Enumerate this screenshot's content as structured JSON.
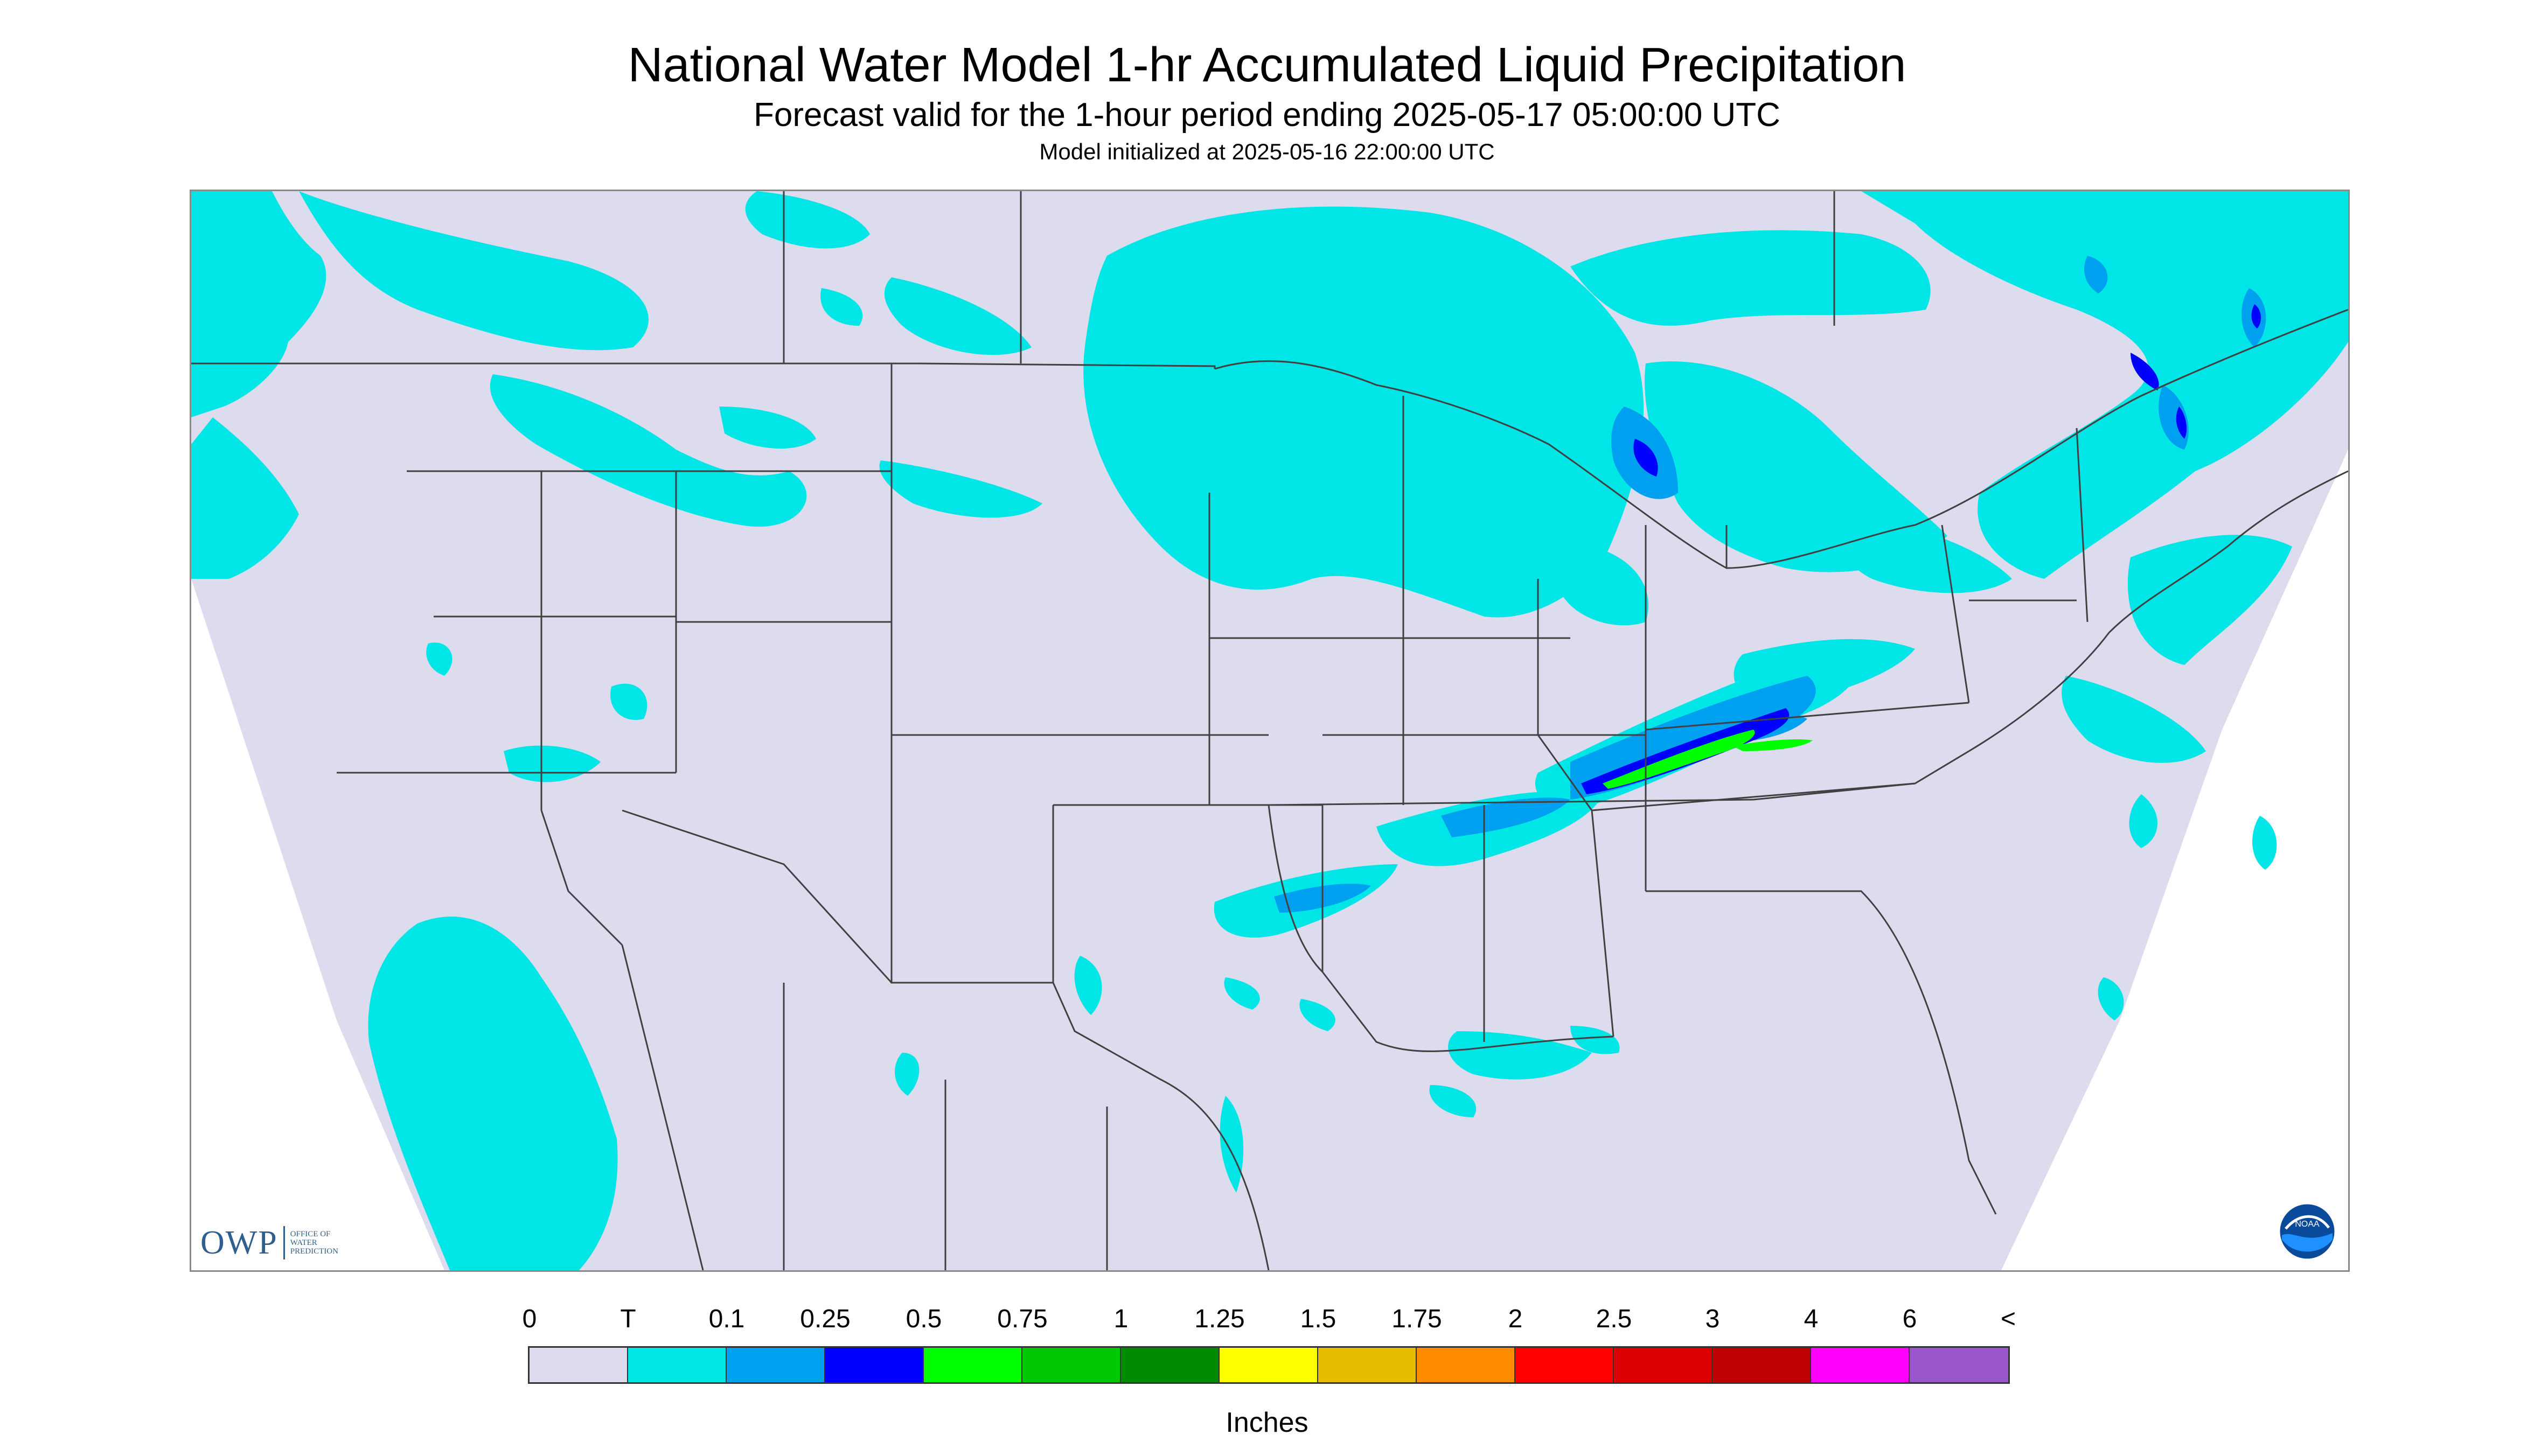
{
  "title": "National Water Model 1-hr Accumulated Liquid Precipitation",
  "subtitle": "Forecast valid for the 1-hour period ending 2025-05-17 05:00:00 UTC",
  "init_line": "Model initialized at 2025-05-16 22:00:00 UTC",
  "owp": {
    "logo_text": "OWP",
    "sub_line1": "OFFICE OF",
    "sub_line2": "WATER",
    "sub_line3": "PREDICTION"
  },
  "noaa": {
    "logo_text": "NOAA"
  },
  "legend": {
    "units": "Inches",
    "labels": [
      "0",
      "T",
      "0.1",
      "0.25",
      "0.5",
      "0.75",
      "1",
      "1.25",
      "1.5",
      "1.75",
      "2",
      "2.5",
      "3",
      "4",
      "6",
      "<"
    ],
    "colors": [
      "#dcdcee",
      "#00e5e5",
      "#00a0f0",
      "#0000ff",
      "#00ff00",
      "#00c800",
      "#008c00",
      "#ffff00",
      "#e6be00",
      "#ff8c00",
      "#ff0000",
      "#dc0000",
      "#be0000",
      "#ff00ff",
      "#9955cc"
    ]
  },
  "map": {
    "background_color": "#dcdcee",
    "outside_color": "#ffffff",
    "boundary_color": "#404040"
  }
}
